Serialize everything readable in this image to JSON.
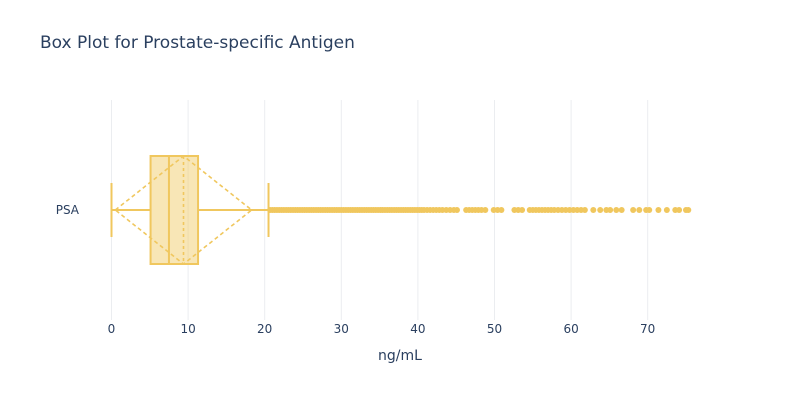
{
  "chart_data": {
    "type": "box",
    "title": "Box Plot for Prostate-specific Antigen",
    "xlabel": "ng/mL",
    "ylabel": "",
    "orientation": "horizontal",
    "xlim": [
      0,
      75
    ],
    "x_ticks": [
      0,
      10,
      20,
      30,
      40,
      50,
      60,
      70
    ],
    "grid": true,
    "color": "#f0c75e",
    "series": [
      {
        "name": "PSA",
        "min": 0,
        "q1": 5.1,
        "median": 7.5,
        "q3": 11.3,
        "upper_fence": 20.5,
        "mean": 9.4,
        "sd": 8.9,
        "outliers": [
          20.7,
          21,
          21.3,
          21.6,
          21.9,
          22.2,
          22.5,
          22.8,
          23.1,
          23.4,
          23.7,
          24,
          24.3,
          24.6,
          24.9,
          25.2,
          25.5,
          25.8,
          26.1,
          26.4,
          26.7,
          27,
          27.3,
          27.6,
          27.9,
          28.2,
          28.5,
          28.8,
          29.1,
          29.4,
          29.7,
          30,
          30.3,
          30.6,
          30.9,
          31.2,
          31.5,
          31.8,
          32.1,
          32.4,
          32.7,
          33,
          33.3,
          33.6,
          33.9,
          34.2,
          34.5,
          34.8,
          35.1,
          35.4,
          35.7,
          36,
          36.3,
          36.6,
          36.9,
          37.2,
          37.5,
          37.8,
          38.1,
          38.4,
          38.7,
          39,
          39.3,
          39.6,
          39.9,
          40.2,
          40.5,
          40.8,
          41.2,
          41.6,
          42,
          42.4,
          42.8,
          43.2,
          43.7,
          44.2,
          44.7,
          45.1,
          46.3,
          46.7,
          47.1,
          47.5,
          47.9,
          48.3,
          48.8,
          49.9,
          50.4,
          50.9,
          52.6,
          53.1,
          53.6,
          54.6,
          55,
          55.4,
          55.8,
          56.2,
          56.6,
          57,
          57.4,
          57.8,
          58.3,
          58.8,
          59.3,
          59.8,
          60.3,
          60.8,
          61.3,
          61.8,
          62.9,
          63.8,
          64.6,
          65.1,
          65.9,
          66.6,
          68.1,
          68.9,
          69.8,
          70.2,
          71.4,
          72.5,
          73.6,
          74.1,
          75,
          75.3
        ]
      }
    ]
  }
}
